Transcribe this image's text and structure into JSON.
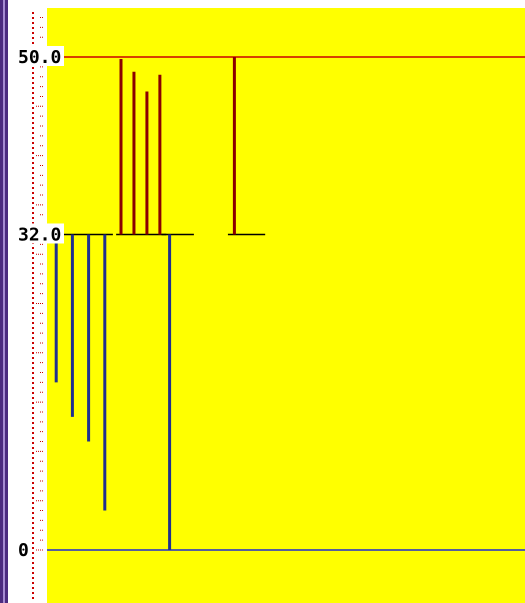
{
  "chart_data": {
    "type": "bar",
    "title": "",
    "xlabel": "",
    "ylabel": "",
    "ylim": [
      0,
      55
    ],
    "y_tick_labels": [
      "50.0",
      "32.0",
      "0"
    ],
    "y_ticks": [
      50,
      32,
      0
    ],
    "grid": false,
    "legend": "none",
    "reference_lines": [
      {
        "value": 50,
        "color": "#cc0000"
      },
      {
        "value": 0,
        "color": "#1f2bd0"
      }
    ],
    "series": [
      {
        "color": "#1f2f8f",
        "bars": [
          {
            "x": 1,
            "from": 32,
            "to": 17
          },
          {
            "x": 2,
            "from": 32,
            "to": 13.5
          },
          {
            "x": 3,
            "from": 32,
            "to": 11
          },
          {
            "x": 4,
            "from": 32,
            "to": 4
          },
          {
            "x": 8,
            "from": 32,
            "to": 0
          }
        ],
        "caps": [
          {
            "x_from": 0.5,
            "x_to": 4.5,
            "y": 32
          },
          {
            "x_from": 7.5,
            "x_to": 9.5,
            "y": 32
          }
        ]
      },
      {
        "color": "#8b0000",
        "bars": [
          {
            "x": 5,
            "from": 32,
            "to": 49.8
          },
          {
            "x": 5.8,
            "from": 32,
            "to": 48.5
          },
          {
            "x": 6.6,
            "from": 32,
            "to": 46.5
          },
          {
            "x": 7.4,
            "from": 32,
            "to": 48.2
          },
          {
            "x": 12,
            "from": 32,
            "to": 50
          }
        ],
        "caps": [
          {
            "x_from": 4.7,
            "x_to": 7.8,
            "y": 32
          },
          {
            "x_from": 11.6,
            "x_to": 13.9,
            "y": 32
          }
        ]
      }
    ],
    "colors": {
      "background": "#ffff00",
      "axis_ticks": "#cc0000",
      "text_bg": "#ffffff",
      "text": "#000000"
    }
  }
}
